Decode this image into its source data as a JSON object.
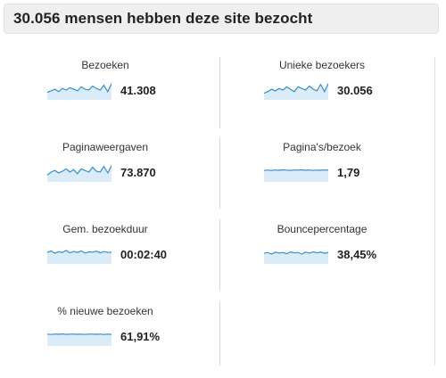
{
  "header": {
    "title": "30.056 mensen hebben deze site bezocht"
  },
  "colors": {
    "spark_line": "#3b8fc4",
    "spark_fill": "#d9ecf8",
    "header_bg": "#efefef"
  },
  "metrics": [
    {
      "label": "Bezoeken",
      "value": "41.308",
      "sparkline": [
        0.35,
        0.45,
        0.55,
        0.4,
        0.6,
        0.5,
        0.65,
        0.55,
        0.45,
        0.7,
        0.55,
        0.5,
        0.75,
        0.6,
        0.5,
        0.8,
        0.4,
        0.9
      ]
    },
    {
      "label": "Unieke bezoekers",
      "value": "30.056",
      "sparkline": [
        0.3,
        0.4,
        0.55,
        0.45,
        0.6,
        0.5,
        0.7,
        0.55,
        0.4,
        0.7,
        0.6,
        0.5,
        0.75,
        0.55,
        0.45,
        0.85,
        0.4,
        0.9
      ]
    },
    {
      "label": "Paginaweergaven",
      "value": "73.870",
      "sparkline": [
        0.3,
        0.5,
        0.6,
        0.45,
        0.55,
        0.7,
        0.5,
        0.65,
        0.4,
        0.7,
        0.6,
        0.5,
        0.8,
        0.55,
        0.5,
        0.85,
        0.45,
        0.9
      ]
    },
    {
      "label": "Pagina's/bezoek",
      "value": "1,79",
      "sparkline": [
        0.6,
        0.62,
        0.6,
        0.63,
        0.61,
        0.64,
        0.62,
        0.6,
        0.63,
        0.62,
        0.64,
        0.61,
        0.63,
        0.6,
        0.62,
        0.61,
        0.63,
        0.62
      ]
    },
    {
      "label": "Gem. bezoekduur",
      "value": "00:02:40",
      "sparkline": [
        0.6,
        0.7,
        0.55,
        0.65,
        0.6,
        0.72,
        0.58,
        0.66,
        0.6,
        0.7,
        0.56,
        0.64,
        0.62,
        0.68,
        0.58,
        0.66,
        0.6,
        0.62
      ]
    },
    {
      "label": "Bouncepercentage",
      "value": "38,45%",
      "sparkline": [
        0.55,
        0.6,
        0.5,
        0.62,
        0.56,
        0.6,
        0.52,
        0.64,
        0.58,
        0.6,
        0.5,
        0.62,
        0.56,
        0.64,
        0.58,
        0.62,
        0.55,
        0.6
      ]
    },
    {
      "label": "% nieuwe bezoeken",
      "value": "61,91%",
      "sparkline": [
        0.62,
        0.6,
        0.63,
        0.61,
        0.64,
        0.6,
        0.62,
        0.63,
        0.61,
        0.62,
        0.6,
        0.63,
        0.62,
        0.61,
        0.63,
        0.6,
        0.62,
        0.61
      ]
    }
  ]
}
